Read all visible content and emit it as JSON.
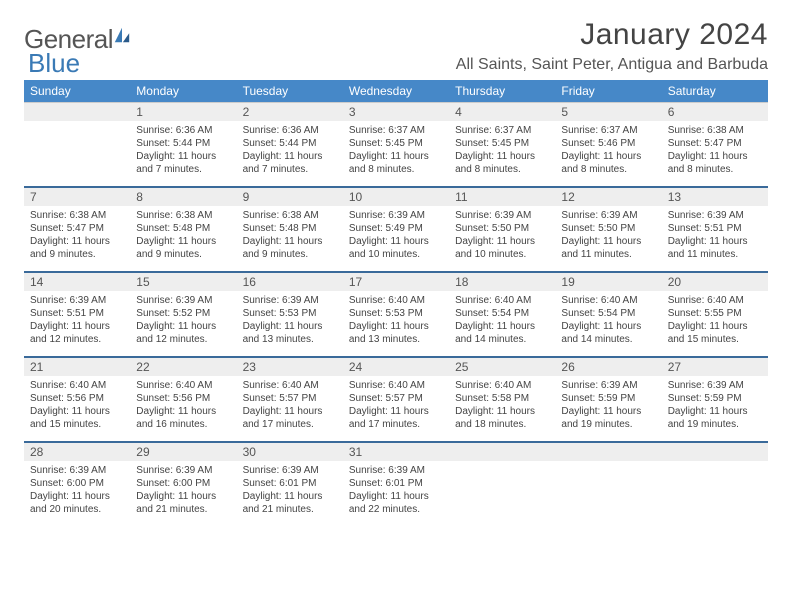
{
  "logo": {
    "word1": "General",
    "word2": "Blue"
  },
  "title": "January 2024",
  "location": "All Saints, Saint Peter, Antigua and Barbuda",
  "colors": {
    "header_bg": "#4688c8",
    "header_text": "#ffffff",
    "daynum_bg": "#eeeeee",
    "week_sep": "#3a6a9a",
    "logo_gray": "#555555",
    "logo_blue": "#3a7ab5",
    "body_text": "#444444",
    "page_bg": "#ffffff"
  },
  "layout": {
    "columns": 7,
    "rows": 5,
    "first_weekday_offset": 1
  },
  "weekdays": [
    "Sunday",
    "Monday",
    "Tuesday",
    "Wednesday",
    "Thursday",
    "Friday",
    "Saturday"
  ],
  "days": [
    {
      "n": 1,
      "sr": "6:36 AM",
      "ss": "5:44 PM",
      "dl": "11 hours and 7 minutes."
    },
    {
      "n": 2,
      "sr": "6:36 AM",
      "ss": "5:44 PM",
      "dl": "11 hours and 7 minutes."
    },
    {
      "n": 3,
      "sr": "6:37 AM",
      "ss": "5:45 PM",
      "dl": "11 hours and 8 minutes."
    },
    {
      "n": 4,
      "sr": "6:37 AM",
      "ss": "5:45 PM",
      "dl": "11 hours and 8 minutes."
    },
    {
      "n": 5,
      "sr": "6:37 AM",
      "ss": "5:46 PM",
      "dl": "11 hours and 8 minutes."
    },
    {
      "n": 6,
      "sr": "6:38 AM",
      "ss": "5:47 PM",
      "dl": "11 hours and 8 minutes."
    },
    {
      "n": 7,
      "sr": "6:38 AM",
      "ss": "5:47 PM",
      "dl": "11 hours and 9 minutes."
    },
    {
      "n": 8,
      "sr": "6:38 AM",
      "ss": "5:48 PM",
      "dl": "11 hours and 9 minutes."
    },
    {
      "n": 9,
      "sr": "6:38 AM",
      "ss": "5:48 PM",
      "dl": "11 hours and 9 minutes."
    },
    {
      "n": 10,
      "sr": "6:39 AM",
      "ss": "5:49 PM",
      "dl": "11 hours and 10 minutes."
    },
    {
      "n": 11,
      "sr": "6:39 AM",
      "ss": "5:50 PM",
      "dl": "11 hours and 10 minutes."
    },
    {
      "n": 12,
      "sr": "6:39 AM",
      "ss": "5:50 PM",
      "dl": "11 hours and 11 minutes."
    },
    {
      "n": 13,
      "sr": "6:39 AM",
      "ss": "5:51 PM",
      "dl": "11 hours and 11 minutes."
    },
    {
      "n": 14,
      "sr": "6:39 AM",
      "ss": "5:51 PM",
      "dl": "11 hours and 12 minutes."
    },
    {
      "n": 15,
      "sr": "6:39 AM",
      "ss": "5:52 PM",
      "dl": "11 hours and 12 minutes."
    },
    {
      "n": 16,
      "sr": "6:39 AM",
      "ss": "5:53 PM",
      "dl": "11 hours and 13 minutes."
    },
    {
      "n": 17,
      "sr": "6:40 AM",
      "ss": "5:53 PM",
      "dl": "11 hours and 13 minutes."
    },
    {
      "n": 18,
      "sr": "6:40 AM",
      "ss": "5:54 PM",
      "dl": "11 hours and 14 minutes."
    },
    {
      "n": 19,
      "sr": "6:40 AM",
      "ss": "5:54 PM",
      "dl": "11 hours and 14 minutes."
    },
    {
      "n": 20,
      "sr": "6:40 AM",
      "ss": "5:55 PM",
      "dl": "11 hours and 15 minutes."
    },
    {
      "n": 21,
      "sr": "6:40 AM",
      "ss": "5:56 PM",
      "dl": "11 hours and 15 minutes."
    },
    {
      "n": 22,
      "sr": "6:40 AM",
      "ss": "5:56 PM",
      "dl": "11 hours and 16 minutes."
    },
    {
      "n": 23,
      "sr": "6:40 AM",
      "ss": "5:57 PM",
      "dl": "11 hours and 17 minutes."
    },
    {
      "n": 24,
      "sr": "6:40 AM",
      "ss": "5:57 PM",
      "dl": "11 hours and 17 minutes."
    },
    {
      "n": 25,
      "sr": "6:40 AM",
      "ss": "5:58 PM",
      "dl": "11 hours and 18 minutes."
    },
    {
      "n": 26,
      "sr": "6:39 AM",
      "ss": "5:59 PM",
      "dl": "11 hours and 19 minutes."
    },
    {
      "n": 27,
      "sr": "6:39 AM",
      "ss": "5:59 PM",
      "dl": "11 hours and 19 minutes."
    },
    {
      "n": 28,
      "sr": "6:39 AM",
      "ss": "6:00 PM",
      "dl": "11 hours and 20 minutes."
    },
    {
      "n": 29,
      "sr": "6:39 AM",
      "ss": "6:00 PM",
      "dl": "11 hours and 21 minutes."
    },
    {
      "n": 30,
      "sr": "6:39 AM",
      "ss": "6:01 PM",
      "dl": "11 hours and 21 minutes."
    },
    {
      "n": 31,
      "sr": "6:39 AM",
      "ss": "6:01 PM",
      "dl": "11 hours and 22 minutes."
    }
  ],
  "labels": {
    "sunrise": "Sunrise:",
    "sunset": "Sunset:",
    "daylight": "Daylight:"
  }
}
